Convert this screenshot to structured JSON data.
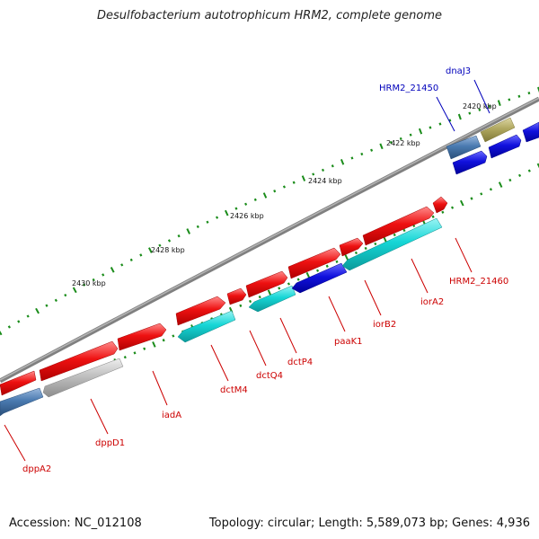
{
  "title": "Desulfobacterium autotrophicum HRM2, complete genome",
  "footer": {
    "accession": "Accession: NC_012108",
    "topology": "Topology: circular; Length: 5,589,073 bp; Genes: 4,936"
  },
  "kbp_labels": [
    "2420 kbp",
    "2422 kbp",
    "2424 kbp",
    "2426 kbp",
    "2428 kbp",
    "2430 kbp"
  ],
  "gene_labels_top": [
    "HRM2_21450",
    "dnaJ3"
  ],
  "gene_labels_bottom": [
    "dppA2",
    "dppD1",
    "iadA",
    "dctM4",
    "dctQ4",
    "dctP4",
    "paaK1",
    "iorB2",
    "iorA2",
    "HRM2_21460"
  ],
  "colors": {
    "backbone": "#808080",
    "tick": "#1a8c1a",
    "red": "#ee1111",
    "cyan": "#16d6d6",
    "blue": "#1111dd",
    "steelblue": "#4a7ab0",
    "olive": "#b0a860",
    "gray": "#b8b8b8",
    "label_red": "#cc0000",
    "label_blue": "#0000bb"
  }
}
